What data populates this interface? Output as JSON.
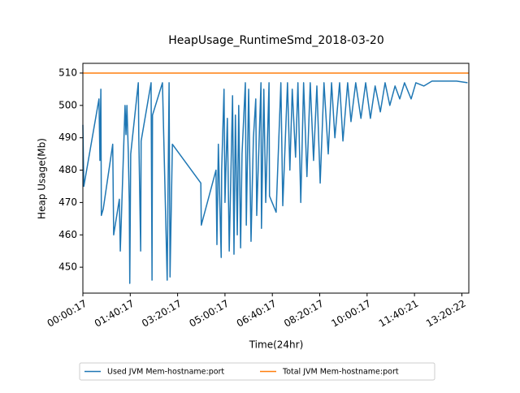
{
  "chart_data": {
    "type": "line",
    "title": "HeapUsage_RuntimeSmd_2018-03-20",
    "xlabel": "Time(24hr)",
    "ylabel": "Heap Usage(Mb)",
    "xlim": [
      "00:00:17",
      "13:35:02"
    ],
    "ylim": [
      442,
      513
    ],
    "xticks": [
      "00:00:17",
      "01:40:17",
      "03:20:17",
      "05:00:17",
      "06:40:17",
      "08:20:17",
      "10:00:17",
      "11:40:21",
      "13:20:22"
    ],
    "yticks": [
      450,
      460,
      470,
      480,
      490,
      500,
      510
    ],
    "legend": "bottom",
    "series": [
      {
        "name": "Used JVM Mem-hostname:port",
        "color": "#1f77b4",
        "x": [
          "00:00:17",
          "00:02:17",
          "00:34:17",
          "00:36:17",
          "00:38:17",
          "00:39:17",
          "00:43:17",
          "01:03:17",
          "01:05:17",
          "01:17:17",
          "01:19:17",
          "01:29:17",
          "01:31:17",
          "01:33:17",
          "01:36:17",
          "01:38:17",
          "01:39:17",
          "01:41:17",
          "01:57:17",
          "01:58:17",
          "02:02:17",
          "02:03:17",
          "02:24:17",
          "02:26:17",
          "02:27:17",
          "02:48:17",
          "02:58:17",
          "03:02:17",
          "03:04:17",
          "03:09:17",
          "04:09:17",
          "04:10:17",
          "04:41:17",
          "04:43:17",
          "04:46:17",
          "04:52:17",
          "04:53:17",
          "04:58:17",
          "05:00:17",
          "05:05:17",
          "05:09:17",
          "05:16:17",
          "05:19:17",
          "05:22:17",
          "05:26:17",
          "05:29:17",
          "05:33:17",
          "05:36:17",
          "05:43:17",
          "05:45:17",
          "05:50:17",
          "05:55:17",
          "06:00:17",
          "06:05:17",
          "06:07:17",
          "06:16:17",
          "06:17:17",
          "06:22:17",
          "06:26:17",
          "06:33:17",
          "06:34:17",
          "06:48:17",
          "06:58:17",
          "07:02:17",
          "07:12:17",
          "07:17:17",
          "07:22:17",
          "07:29:17",
          "07:34:17",
          "07:40:17",
          "07:46:17",
          "07:53:17",
          "08:00:17",
          "08:07:17",
          "08:14:17",
          "08:21:17",
          "08:29:17",
          "08:38:17",
          "08:45:17",
          "08:52:17",
          "09:02:17",
          "09:09:17",
          "09:19:17",
          "09:26:17",
          "09:36:17",
          "09:47:17",
          "09:57:17",
          "10:07:17",
          "10:17:17",
          "10:28:17",
          "10:38:17",
          "10:48:17",
          "10:59:17",
          "11:09:17",
          "11:19:17",
          "11:33:17",
          "11:43:17",
          "12:00:17",
          "12:17:17",
          "12:35:17",
          "13:09:17",
          "13:32:17"
        ],
        "values": [
          494,
          475,
          502,
          483,
          505,
          466,
          468,
          488,
          460,
          471,
          455,
          500,
          491,
          500,
          485,
          470,
          445,
          485,
          507,
          491,
          455,
          489,
          507,
          446,
          497,
          507,
          446,
          507,
          447,
          488,
          476,
          463,
          480,
          457,
          488,
          453,
          480,
          505,
          470,
          496,
          455,
          503,
          454,
          497,
          460,
          500,
          456,
          485,
          507,
          463,
          505,
          458,
          490,
          502,
          466,
          507,
          462,
          505,
          470,
          507,
          472,
          467,
          507,
          469,
          507,
          480,
          505,
          484,
          507,
          470,
          507,
          478,
          507,
          483,
          506,
          476,
          507,
          485,
          507,
          490,
          507,
          489,
          507,
          495,
          507,
          496,
          507,
          496,
          506,
          498,
          507,
          500,
          506,
          502,
          507,
          502,
          507,
          506,
          507.5,
          507.5,
          507.5,
          507
        ]
      },
      {
        "name": "Total JVM Mem-hostname:port",
        "color": "#ff7f0e",
        "x": [
          "00:00:17",
          "13:35:02"
        ],
        "values": [
          510,
          510
        ]
      }
    ]
  }
}
